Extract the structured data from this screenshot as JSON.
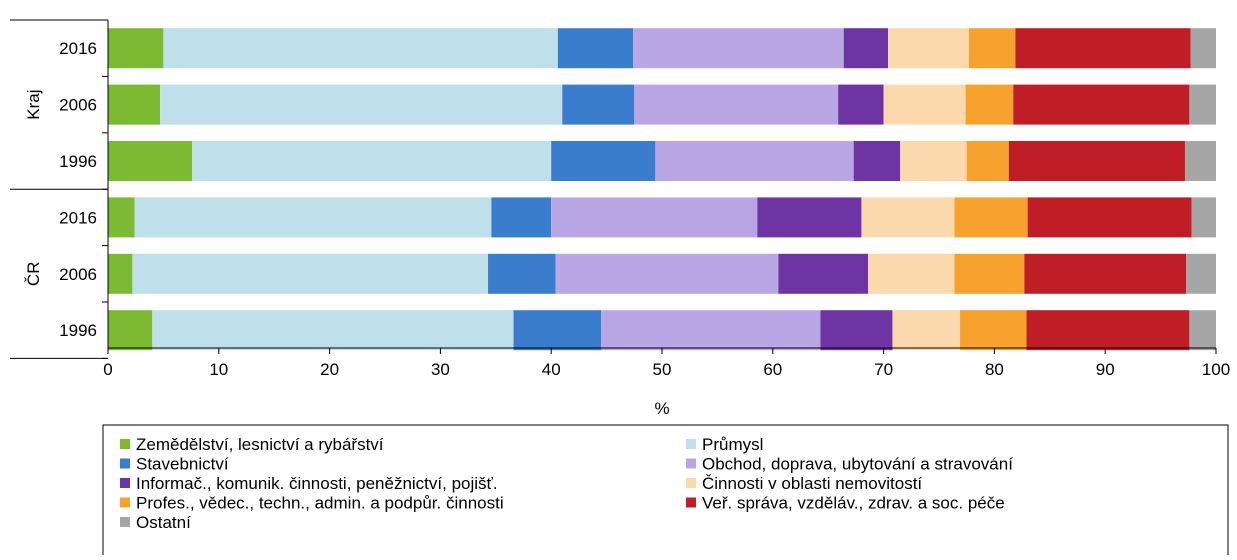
{
  "chart_data": {
    "type": "bar",
    "orientation": "horizontal",
    "stacked": true,
    "xlabel": "%",
    "xlim": [
      0,
      100
    ],
    "xticks": [
      0,
      10,
      20,
      30,
      40,
      50,
      60,
      70,
      80,
      90,
      100
    ],
    "grid": false,
    "legend_position": "bottom",
    "groups": [
      {
        "label": "Kraj",
        "categories": [
          "2016",
          "2006",
          "1996"
        ]
      },
      {
        "label": "ČR",
        "categories": [
          "2016",
          "2006",
          "1996"
        ]
      }
    ],
    "categories": [
      "Kraj 2016",
      "Kraj 2006",
      "Kraj 1996",
      "ČR 2016",
      "ČR 2006",
      "ČR 1996"
    ],
    "series": [
      {
        "name": "Zemědělství, lesnictví a rybářství",
        "color": "#7cba34",
        "values": [
          5.0,
          4.7,
          7.6,
          2.4,
          2.2,
          4.0
        ]
      },
      {
        "name": "Průmysl",
        "color": "#bfe0ea",
        "values": [
          35.6,
          36.3,
          32.4,
          32.2,
          32.1,
          32.6
        ]
      },
      {
        "name": "Stavebnictví",
        "color": "#3a7dcc",
        "values": [
          6.8,
          6.5,
          9.4,
          5.4,
          6.1,
          7.9
        ]
      },
      {
        "name": "Obchod, doprava, ubytování a stravování",
        "color": "#b9a6e5",
        "values": [
          19.0,
          18.4,
          17.9,
          18.6,
          20.1,
          19.8
        ]
      },
      {
        "name": "Informač., komunik. činnosti, peněžnictví, pojišť.",
        "color": "#6f34a4",
        "values": [
          4.0,
          4.1,
          4.2,
          9.4,
          8.1,
          6.5
        ]
      },
      {
        "name": "Činnosti v oblasti nemovitostí",
        "color": "#fbd9ad",
        "values": [
          7.3,
          7.4,
          6.0,
          8.4,
          7.8,
          6.1
        ]
      },
      {
        "name": "Profes., vědec., techn., admin. a podpůr. činnosti",
        "color": "#f7a12f",
        "values": [
          4.2,
          4.3,
          3.8,
          6.6,
          6.3,
          6.0
        ]
      },
      {
        "name": "Veř. správa, vzděláv., zdrav. a soc. péče",
        "color": "#bf1e27",
        "values": [
          15.8,
          15.9,
          15.9,
          14.8,
          14.6,
          14.7
        ]
      },
      {
        "name": "Ostatní",
        "color": "#a6a6a6",
        "values": [
          2.3,
          2.4,
          2.8,
          2.2,
          2.7,
          2.4
        ]
      }
    ]
  }
}
